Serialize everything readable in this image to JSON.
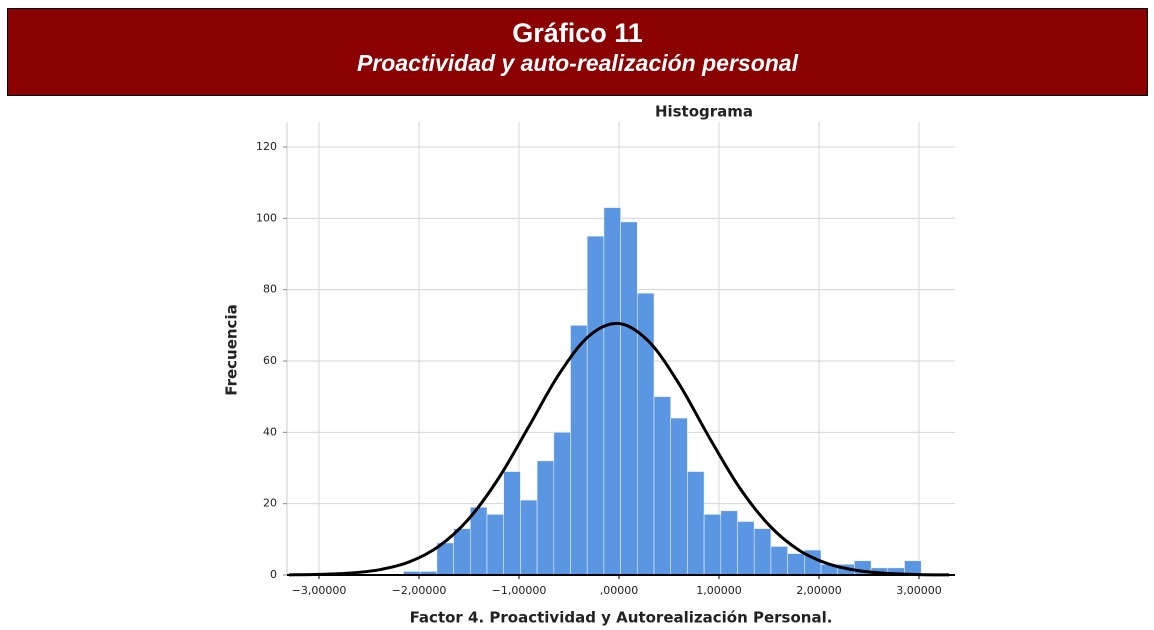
{
  "banner": {
    "title": "Gráfico 11",
    "subtitle": "Proactividad y auto-realización personal"
  },
  "chart_data": {
    "type": "histogram",
    "title": "Histograma",
    "x_label": "Factor 4. Proactividad y Autorealización Personal.",
    "y_label": "Frecuencia",
    "bins": [
      -2.155,
      -1.988,
      -1.821,
      -1.654,
      -1.487,
      -1.32,
      -1.153,
      -0.986,
      -0.819,
      -0.652,
      -0.485,
      -0.318,
      -0.151,
      0.016,
      0.183,
      0.35,
      0.517,
      0.684,
      0.851,
      1.018,
      1.185,
      1.352,
      1.519,
      1.686,
      1.853,
      2.02,
      2.187,
      2.354,
      2.521,
      2.688,
      2.855,
      3.022
    ],
    "counts": [
      1,
      1,
      9,
      13,
      19,
      17,
      29,
      21,
      32,
      40,
      70,
      95,
      103,
      99,
      79,
      50,
      44,
      29,
      17,
      18,
      15,
      13,
      8,
      6,
      7,
      3,
      3,
      4,
      2,
      2,
      4
    ],
    "color": "#5b96e3",
    "curve": {
      "x": [
        -3.3,
        -3.0,
        -2.7,
        -2.4,
        -2.1,
        -1.8,
        -1.5,
        -1.2,
        -0.9,
        -0.6,
        -0.3,
        0,
        0.3,
        0.6,
        0.9,
        1.2,
        1.5,
        1.8,
        2.1,
        2.4,
        2.7,
        3.0,
        3.3
      ],
      "values": [
        0.04,
        0.16,
        0.51,
        1.45,
        3.64,
        8.08,
        15.8,
        27.3,
        41.7,
        56.3,
        67.0,
        70.5,
        65.4,
        53.6,
        38.7,
        24.7,
        14.0,
        6.95,
        3.06,
        1.18,
        0.41,
        0.12,
        0.03
      ],
      "color": "#000000"
    },
    "xlim": [
      -3.32,
      3.36
    ],
    "ylim": [
      0,
      127
    ],
    "xticks": [
      {
        "value": -3,
        "label": "−3,00000"
      },
      {
        "value": -2,
        "label": "−2,00000"
      },
      {
        "value": -1,
        "label": "−1,00000"
      },
      {
        "value": 0,
        "label": ",00000"
      },
      {
        "value": 1,
        "label": "1,00000"
      },
      {
        "value": 2,
        "label": "2,00000"
      },
      {
        "value": 3,
        "label": "3,00000"
      }
    ],
    "yticks": [
      0,
      20,
      40,
      60,
      80,
      100,
      120
    ],
    "grid": true
  }
}
